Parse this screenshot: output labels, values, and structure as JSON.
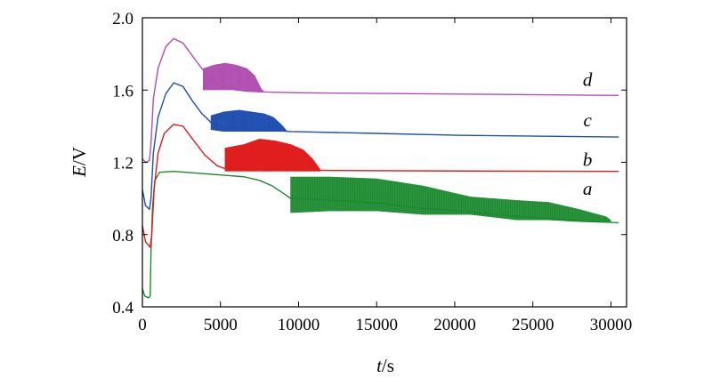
{
  "chart_data": {
    "type": "line",
    "title": "",
    "xlabel_italic": "t",
    "xlabel_unit": "/s",
    "ylabel_italic": "E",
    "ylabel_unit": "/V",
    "xlim": [
      0,
      31000
    ],
    "ylim": [
      0.4,
      2.0
    ],
    "xticks": [
      0,
      5000,
      10000,
      15000,
      20000,
      25000,
      30000
    ],
    "xtick_labels": [
      "0",
      "5000",
      "10000",
      "15000",
      "20000",
      "25000",
      "30000"
    ],
    "yticks": [
      0.4,
      0.8,
      1.2,
      1.6,
      2.0
    ],
    "ytick_labels": [
      "0.4",
      "0.8",
      "1.2",
      "1.6",
      "2.0"
    ],
    "grid": false,
    "series": [
      {
        "name": "a",
        "color": "#1a8a2e",
        "base": [
          [
            0,
            0.5
          ],
          [
            150,
            0.46
          ],
          [
            400,
            0.45
          ],
          [
            500,
            0.46
          ],
          [
            550,
            0.7
          ],
          [
            650,
            0.95
          ],
          [
            800,
            1.1
          ],
          [
            1100,
            1.145
          ],
          [
            2000,
            1.15
          ],
          [
            3500,
            1.14
          ],
          [
            5000,
            1.13
          ],
          [
            6500,
            1.12
          ],
          [
            7500,
            1.1
          ],
          [
            8300,
            1.07
          ],
          [
            9000,
            1.03
          ],
          [
            9500,
            1.0
          ],
          [
            12000,
            0.99
          ],
          [
            15000,
            0.975
          ],
          [
            18000,
            0.945
          ],
          [
            21000,
            0.925
          ],
          [
            24000,
            0.9
          ],
          [
            27000,
            0.885
          ],
          [
            29000,
            0.873
          ],
          [
            30500,
            0.865
          ]
        ],
        "oscillation": [
          [
            9500,
            1.12,
            0.92
          ],
          [
            12000,
            1.12,
            0.93
          ],
          [
            15000,
            1.11,
            0.93
          ],
          [
            18000,
            1.07,
            0.91
          ],
          [
            21000,
            1.01,
            0.91
          ],
          [
            24000,
            0.99,
            0.88
          ],
          [
            26000,
            0.98,
            0.88
          ],
          [
            28000,
            0.94,
            0.87
          ],
          [
            29700,
            0.9,
            0.865
          ],
          [
            30000,
            0.88,
            0.865
          ]
        ]
      },
      {
        "name": "b",
        "color": "#e01b1b",
        "base": [
          [
            0,
            0.85
          ],
          [
            200,
            0.76
          ],
          [
            500,
            0.73
          ],
          [
            600,
            0.8
          ],
          [
            750,
            1.05
          ],
          [
            1000,
            1.25
          ],
          [
            1400,
            1.36
          ],
          [
            2000,
            1.41
          ],
          [
            2600,
            1.4
          ],
          [
            3200,
            1.33
          ],
          [
            4000,
            1.24
          ],
          [
            4800,
            1.18
          ],
          [
            5300,
            1.165
          ],
          [
            8000,
            1.162
          ],
          [
            12000,
            1.155
          ],
          [
            20000,
            1.152
          ],
          [
            30500,
            1.15
          ]
        ],
        "oscillation": [
          [
            5300,
            1.28,
            1.15
          ],
          [
            6500,
            1.3,
            1.15
          ],
          [
            7500,
            1.33,
            1.15
          ],
          [
            8500,
            1.32,
            1.15
          ],
          [
            9500,
            1.3,
            1.15
          ],
          [
            10300,
            1.27,
            1.15
          ],
          [
            10900,
            1.22,
            1.15
          ],
          [
            11400,
            1.16,
            1.15
          ]
        ]
      },
      {
        "name": "c",
        "color": "#1f4fb0",
        "base": [
          [
            0,
            1.05
          ],
          [
            200,
            0.96
          ],
          [
            450,
            0.94
          ],
          [
            550,
            1.0
          ],
          [
            700,
            1.25
          ],
          [
            1000,
            1.45
          ],
          [
            1500,
            1.58
          ],
          [
            2000,
            1.64
          ],
          [
            2600,
            1.62
          ],
          [
            3200,
            1.54
          ],
          [
            3800,
            1.47
          ],
          [
            4400,
            1.42
          ],
          [
            5000,
            1.4
          ],
          [
            7000,
            1.385
          ],
          [
            9500,
            1.37
          ],
          [
            15000,
            1.36
          ],
          [
            20000,
            1.35
          ],
          [
            30500,
            1.34
          ]
        ],
        "oscillation": [
          [
            4400,
            1.46,
            1.38
          ],
          [
            5200,
            1.48,
            1.37
          ],
          [
            6200,
            1.49,
            1.37
          ],
          [
            7000,
            1.48,
            1.37
          ],
          [
            7800,
            1.47,
            1.37
          ],
          [
            8400,
            1.45,
            1.37
          ],
          [
            8900,
            1.41,
            1.37
          ],
          [
            9300,
            1.37,
            1.37
          ]
        ]
      },
      {
        "name": "d",
        "color": "#b04fb0",
        "base": [
          [
            0,
            1.22
          ],
          [
            200,
            1.2
          ],
          [
            450,
            1.21
          ],
          [
            550,
            1.3
          ],
          [
            700,
            1.55
          ],
          [
            1000,
            1.72
          ],
          [
            1500,
            1.84
          ],
          [
            2000,
            1.885
          ],
          [
            2600,
            1.86
          ],
          [
            3200,
            1.79
          ],
          [
            3800,
            1.72
          ],
          [
            4400,
            1.66
          ],
          [
            5000,
            1.62
          ],
          [
            6000,
            1.6
          ],
          [
            7500,
            1.59
          ],
          [
            10000,
            1.585
          ],
          [
            20000,
            1.578
          ],
          [
            30500,
            1.57
          ]
        ],
        "oscillation": [
          [
            3900,
            1.72,
            1.6
          ],
          [
            4600,
            1.74,
            1.6
          ],
          [
            5300,
            1.75,
            1.6
          ],
          [
            6000,
            1.74,
            1.6
          ],
          [
            6700,
            1.72,
            1.59
          ],
          [
            7200,
            1.68,
            1.59
          ],
          [
            7600,
            1.61,
            1.59
          ],
          [
            7800,
            1.59,
            1.59
          ]
        ]
      }
    ],
    "curve_labels": [
      {
        "text": "a",
        "x": 28500,
        "y": 0.99
      },
      {
        "text": "b",
        "x": 28500,
        "y": 1.15
      },
      {
        "text": "c",
        "x": 28500,
        "y": 1.37
      },
      {
        "text": "d",
        "x": 28500,
        "y": 1.595
      }
    ]
  }
}
